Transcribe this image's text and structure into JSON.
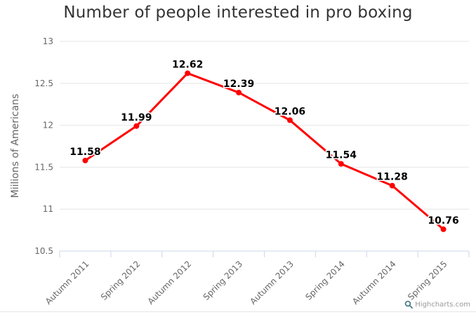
{
  "chart_data": {
    "type": "line",
    "title": "Number of people interested in pro boxing",
    "xlabel": "",
    "ylabel": "Miilions of Americans",
    "categories": [
      "Autumn 2011",
      "Spring 2012",
      "Autumn 2012",
      "Spring 2013",
      "Autumn 2013",
      "Spring 2014",
      "Autumn 2014",
      "Spring 2015"
    ],
    "values": [
      11.58,
      11.99,
      12.62,
      12.39,
      12.06,
      11.54,
      11.28,
      10.76
    ],
    "data_labels": [
      "11.58",
      "11.99",
      "12.62",
      "12.39",
      "12.06",
      "11.54",
      "11.28",
      "10.76"
    ],
    "ylim": [
      10.5,
      13
    ],
    "yticks": [
      10.5,
      11,
      11.5,
      12,
      12.5,
      13
    ],
    "grid": true,
    "legend": "none",
    "x_label_rotation": -45
  },
  "colors": {
    "series": "#ff0000",
    "title_text": "#333333",
    "axis_label_text": "#666666",
    "axis_title_text": "#666666",
    "gridline": "#e6e6e6",
    "axis_line": "#ccd6eb",
    "data_label_text": "#000000",
    "credit_text": "#999999",
    "credit_logo": "#4a7c89",
    "divider": "#e6e6e6"
  },
  "credit": {
    "label": "Highcharts.com"
  }
}
